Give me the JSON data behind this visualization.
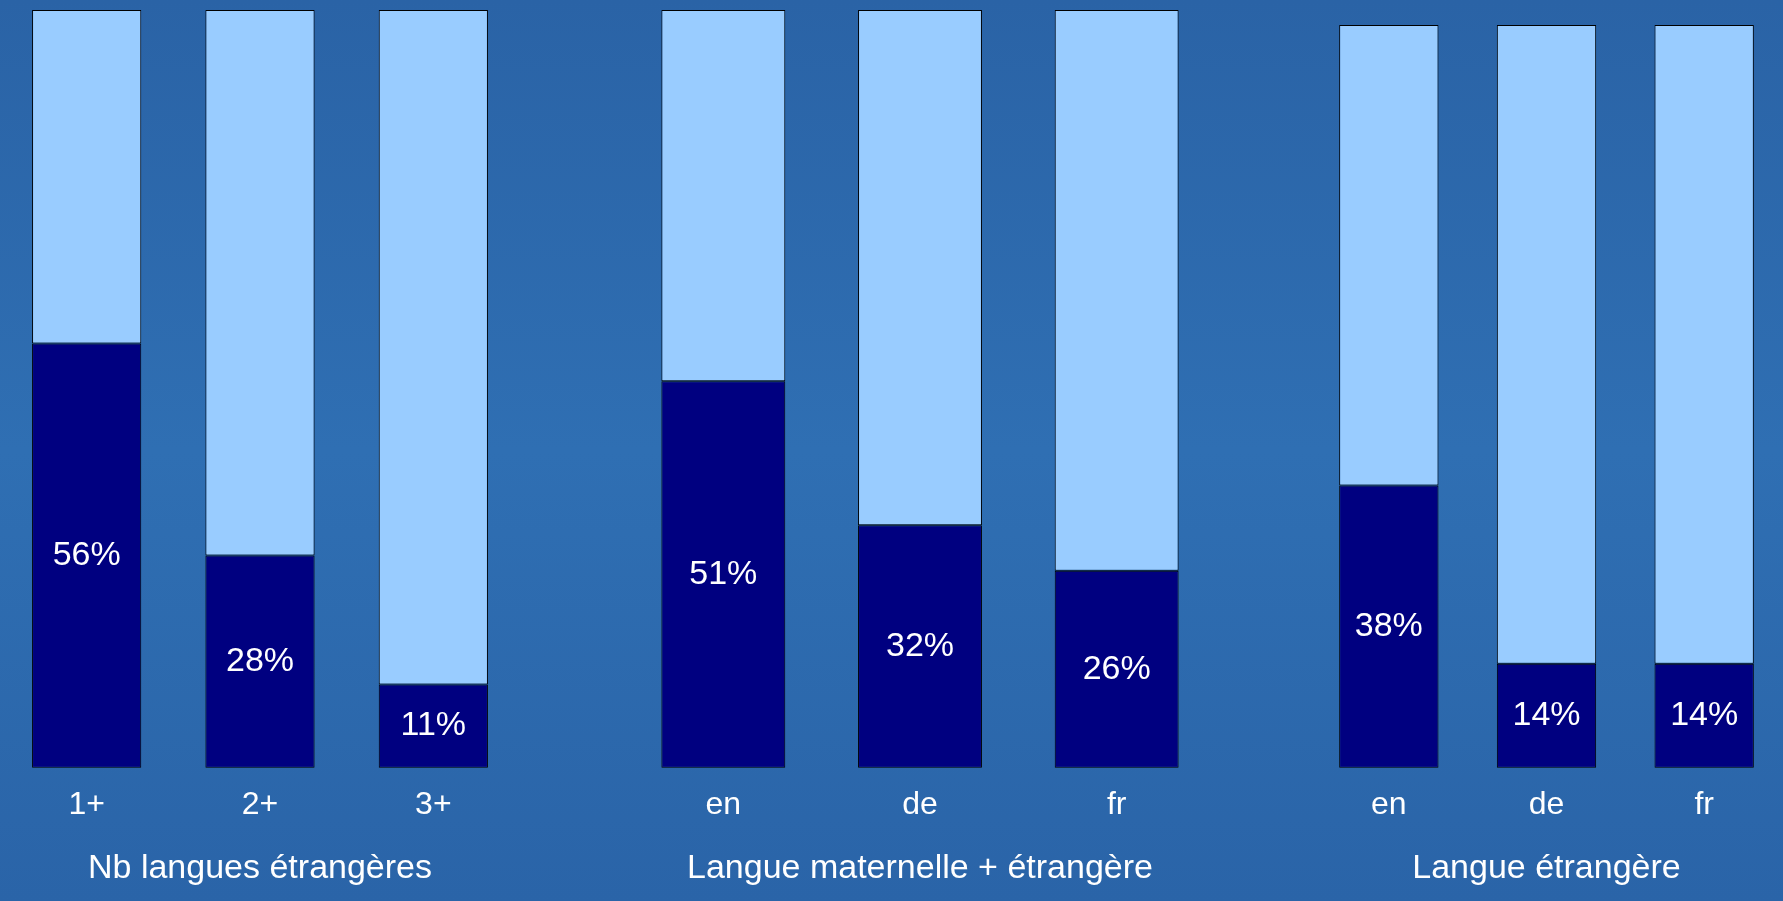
{
  "chart_data": [
    {
      "type": "bar",
      "stacked": true,
      "xlabel": "Nb langues étrangères",
      "categories": [
        "1+",
        "2+",
        "3+"
      ],
      "legend": false,
      "grid": false,
      "tick_labels": "x",
      "series": [
        {
          "color": "#000080",
          "values": [
            56,
            28,
            11
          ],
          "value_labels": [
            "56%",
            "28%",
            "11%"
          ]
        },
        {
          "color": "#99ccff",
          "values": [
            44,
            72,
            89
          ]
        }
      ]
    },
    {
      "type": "bar",
      "stacked": true,
      "xlabel": "Langue maternelle + étrangère",
      "categories": [
        "en",
        "de",
        "fr"
      ],
      "legend": false,
      "grid": false,
      "tick_labels": "x",
      "series": [
        {
          "color": "#000080",
          "values": [
            51,
            32,
            26
          ],
          "value_labels": [
            "51%",
            "32%",
            "26%"
          ]
        },
        {
          "color": "#99ccff",
          "values": [
            49,
            68,
            74
          ]
        }
      ]
    },
    {
      "type": "bar",
      "stacked": true,
      "xlabel": "Langue étrangère",
      "categories": [
        "en",
        "de",
        "fr"
      ],
      "legend": false,
      "grid": false,
      "tick_labels": "x",
      "series": [
        {
          "color": "#000080",
          "values": [
            38,
            14,
            14
          ],
          "value_labels": [
            "38%",
            "14%",
            "14%"
          ]
        },
        {
          "color": "#99ccff",
          "values": [
            62,
            86,
            86
          ]
        }
      ]
    }
  ]
}
